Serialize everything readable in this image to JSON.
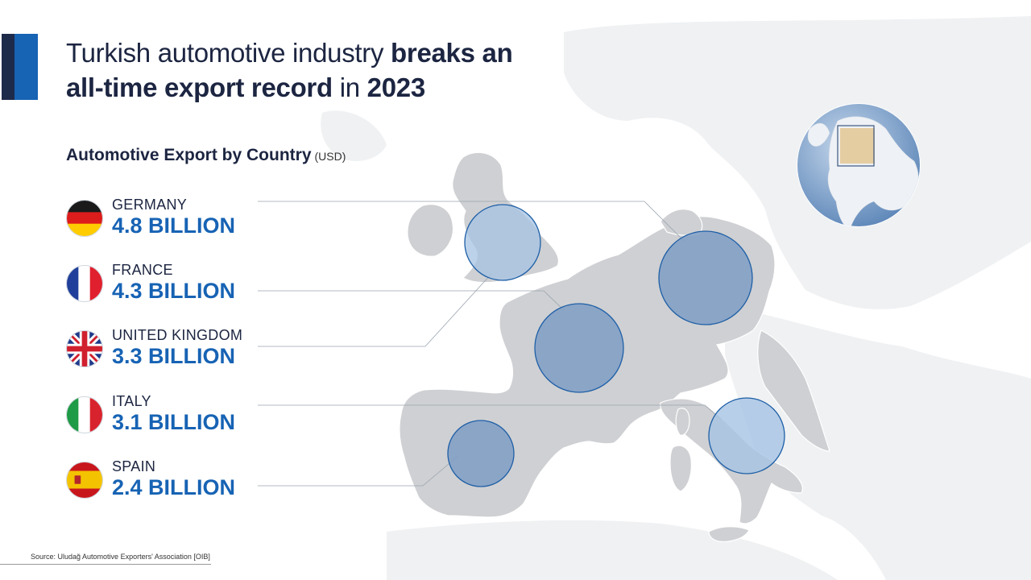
{
  "title": {
    "part1": "Turkish automotive industry ",
    "part2_bold": "breaks an",
    "part3_bold": "all-time export record",
    "part4": " in ",
    "part5_bold": "2023"
  },
  "subtitle": {
    "label": "Automotive Export by Country",
    "unit": "(USD)"
  },
  "countries": [
    {
      "name": "GERMANY",
      "value": "4.8 BILLION",
      "flag": "germany-flag-icon"
    },
    {
      "name": "FRANCE",
      "value": "4.3 BILLION",
      "flag": "france-flag-icon"
    },
    {
      "name": "UNITED KINGDOM",
      "value": "3.3 BILLION",
      "flag": "uk-flag-icon"
    },
    {
      "name": "ITALY",
      "value": "3.1 BILLION",
      "flag": "italy-flag-icon"
    },
    {
      "name": "SPAIN",
      "value": "2.4 BILLION",
      "flag": "spain-flag-icon"
    }
  ],
  "source": "Source: Uludağ Automotive Exporters' Association  [OIB]",
  "colors": {
    "accent_dark": "#1e2a4a",
    "accent_blue": "#1763b4",
    "bubble_fill": "#6f95c2",
    "land": "#cfd0d3",
    "land_faint": "#eef0f2"
  }
}
